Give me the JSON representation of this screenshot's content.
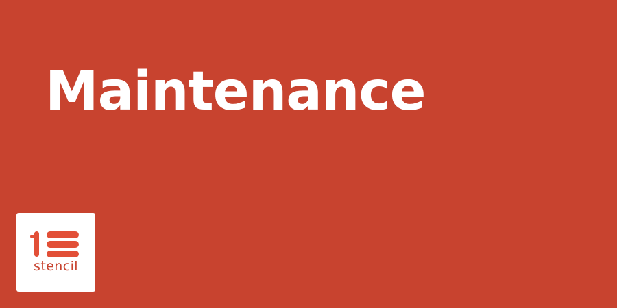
{
  "banner": {
    "title": "Maintenance",
    "background_color": "#c8432f",
    "title_color": "#ffffff"
  },
  "logo": {
    "icon": "stencil-logo-icon",
    "text": "stencil",
    "accent_color": "#e24f37",
    "card_color": "#ffffff"
  }
}
